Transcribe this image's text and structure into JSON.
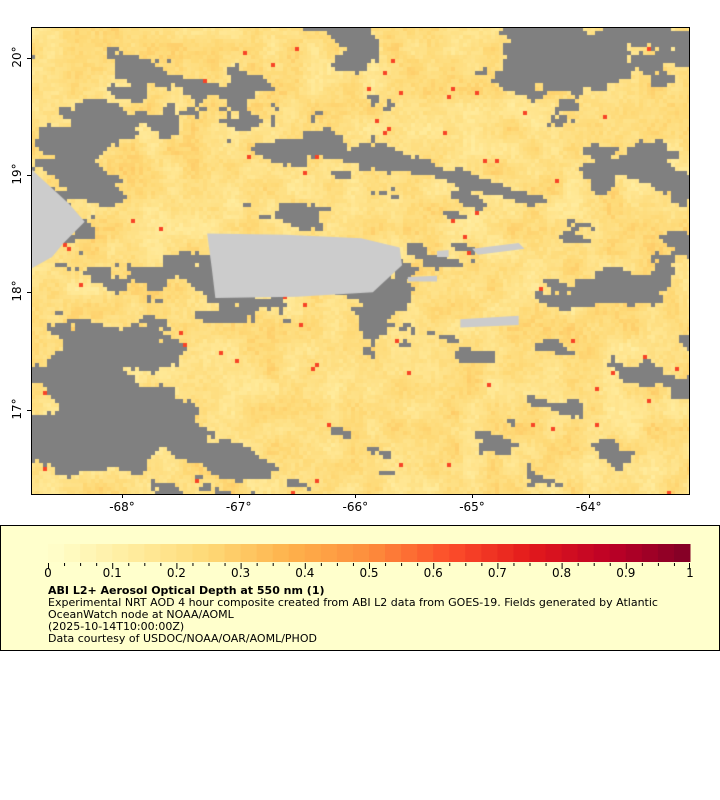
{
  "map": {
    "lon_range": [
      -68.78,
      -63.14
    ],
    "lat_range": [
      16.28,
      20.26
    ],
    "lat_ticks": [
      "20°",
      "19°",
      "18°",
      "17°"
    ],
    "lat_values": [
      20,
      19,
      18,
      17
    ],
    "lon_ticks": [
      "-68°",
      "-67°",
      "-66°",
      "-65°",
      "-64°"
    ],
    "lon_values": [
      -68,
      -67,
      -66,
      -65,
      -64
    ],
    "colors": {
      "cloud_missing": "#808080",
      "land": "#cccccc",
      "water": "#6ea6d8"
    }
  },
  "legend": {
    "colorbar": {
      "min": 0,
      "max": 1,
      "segments": 40,
      "labels": [
        "0",
        "0.1",
        "0.2",
        "0.3",
        "0.4",
        "0.5",
        "0.6",
        "0.7",
        "0.8",
        "0.9",
        "1"
      ],
      "palette": [
        "#ffffcc",
        "#ffeda0",
        "#fed976",
        "#feb24c",
        "#fd8d3c",
        "#fc4e2a",
        "#e31a1c",
        "#bd0026",
        "#800026"
      ]
    },
    "title": "ABI L2+ Aerosol Optical Depth at 550 nm (1)",
    "line1": "Experimental NRT AOD 4 hour composite created from ABI L2 data from GOES-19. Fields generated by Atlantic",
    "line2": "OceanWatch node at NOAA/AOML",
    "line3": "(2025-10-14T10:00:00Z)",
    "line4": "Data courtesy of USDOC/NOAA/OAR/AOML/PHOD"
  }
}
